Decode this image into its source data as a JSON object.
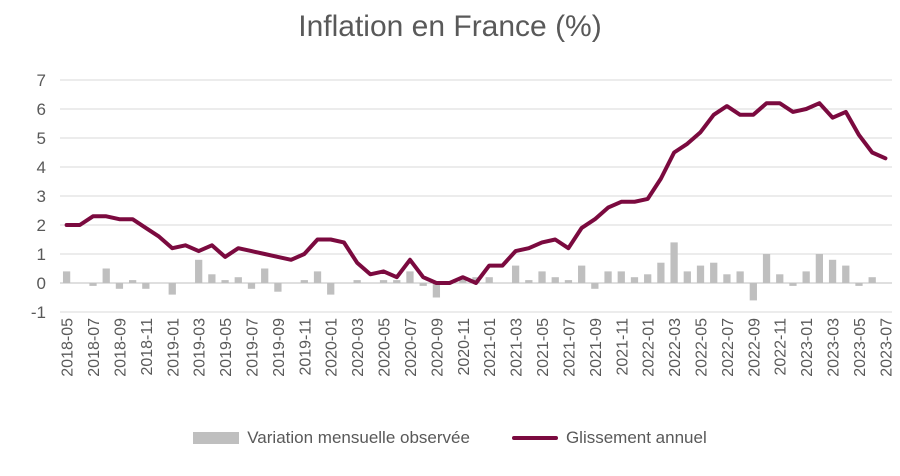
{
  "chart_data": {
    "type": "bar+line",
    "title": "Inflation en France (%)",
    "xlabel": "",
    "ylabel": "",
    "ylim": [
      -1,
      7
    ],
    "yticks": [
      -1,
      0,
      1,
      2,
      3,
      4,
      5,
      6,
      7
    ],
    "grid": true,
    "legend_position": "bottom",
    "categories": [
      "2018-05",
      "2018-06",
      "2018-07",
      "2018-08",
      "2018-09",
      "2018-10",
      "2018-11",
      "2018-12",
      "2019-01",
      "2019-02",
      "2019-03",
      "2019-04",
      "2019-05",
      "2019-06",
      "2019-07",
      "2019-08",
      "2019-09",
      "2019-10",
      "2019-11",
      "2019-12",
      "2020-01",
      "2020-02",
      "2020-03",
      "2020-04",
      "2020-05",
      "2020-06",
      "2020-07",
      "2020-08",
      "2020-09",
      "2020-10",
      "2020-11",
      "2020-12",
      "2021-01",
      "2021-02",
      "2021-03",
      "2021-04",
      "2021-05",
      "2021-06",
      "2021-07",
      "2021-08",
      "2021-09",
      "2021-10",
      "2021-11",
      "2021-12",
      "2022-01",
      "2022-02",
      "2022-03",
      "2022-04",
      "2022-05",
      "2022-06",
      "2022-07",
      "2022-08",
      "2022-09",
      "2022-10",
      "2022-11",
      "2022-12",
      "2023-01",
      "2023-02",
      "2023-03",
      "2023-04",
      "2023-05",
      "2023-06",
      "2023-07"
    ],
    "x_tick_labels": [
      "2018-05",
      "2018-07",
      "2018-09",
      "2018-11",
      "2019-01",
      "2019-03",
      "2019-05",
      "2019-07",
      "2019-09",
      "2019-11",
      "2020-01",
      "2020-03",
      "2020-05",
      "2020-07",
      "2020-09",
      "2020-11",
      "2021-01",
      "2021-03",
      "2021-05",
      "2021-07",
      "2021-09",
      "2021-11",
      "2022-01",
      "2022-03",
      "2022-05",
      "2022-07",
      "2022-09",
      "2022-11",
      "2023-01",
      "2023-03",
      "2023-05",
      "2023-07"
    ],
    "series": [
      {
        "name": "Variation mensuelle observée",
        "type": "bar",
        "color": "#bfbfbf",
        "values": [
          0.4,
          0.0,
          -0.1,
          0.5,
          -0.2,
          0.1,
          -0.2,
          0.0,
          -0.4,
          0.0,
          0.8,
          0.3,
          0.1,
          0.2,
          -0.2,
          0.5,
          -0.3,
          0.0,
          0.1,
          0.4,
          -0.4,
          0.0,
          0.1,
          0.0,
          0.1,
          0.1,
          0.4,
          -0.1,
          -0.5,
          0.0,
          0.2,
          0.2,
          0.2,
          0.0,
          0.6,
          0.1,
          0.4,
          0.2,
          0.1,
          0.6,
          -0.2,
          0.4,
          0.4,
          0.2,
          0.3,
          0.7,
          1.4,
          0.4,
          0.6,
          0.7,
          0.3,
          0.4,
          -0.6,
          1.0,
          0.3,
          -0.1,
          0.4,
          1.0,
          0.8,
          0.6,
          -0.1,
          0.2,
          0.0
        ]
      },
      {
        "name": "Glissement annuel",
        "type": "line",
        "color": "#7b0a3f",
        "values": [
          2.0,
          2.0,
          2.3,
          2.3,
          2.2,
          2.2,
          1.9,
          1.6,
          1.2,
          1.3,
          1.1,
          1.3,
          0.9,
          1.2,
          1.1,
          1.0,
          0.9,
          0.8,
          1.0,
          1.5,
          1.5,
          1.4,
          0.7,
          0.3,
          0.4,
          0.2,
          0.8,
          0.2,
          0.0,
          0.0,
          0.2,
          0.0,
          0.6,
          0.6,
          1.1,
          1.2,
          1.4,
          1.5,
          1.2,
          1.9,
          2.2,
          2.6,
          2.8,
          2.8,
          2.9,
          3.6,
          4.5,
          4.8,
          5.2,
          5.8,
          6.1,
          5.8,
          5.8,
          6.2,
          6.2,
          5.9,
          6.0,
          6.2,
          5.7,
          5.9,
          5.1,
          4.5,
          4.3
        ]
      }
    ]
  }
}
